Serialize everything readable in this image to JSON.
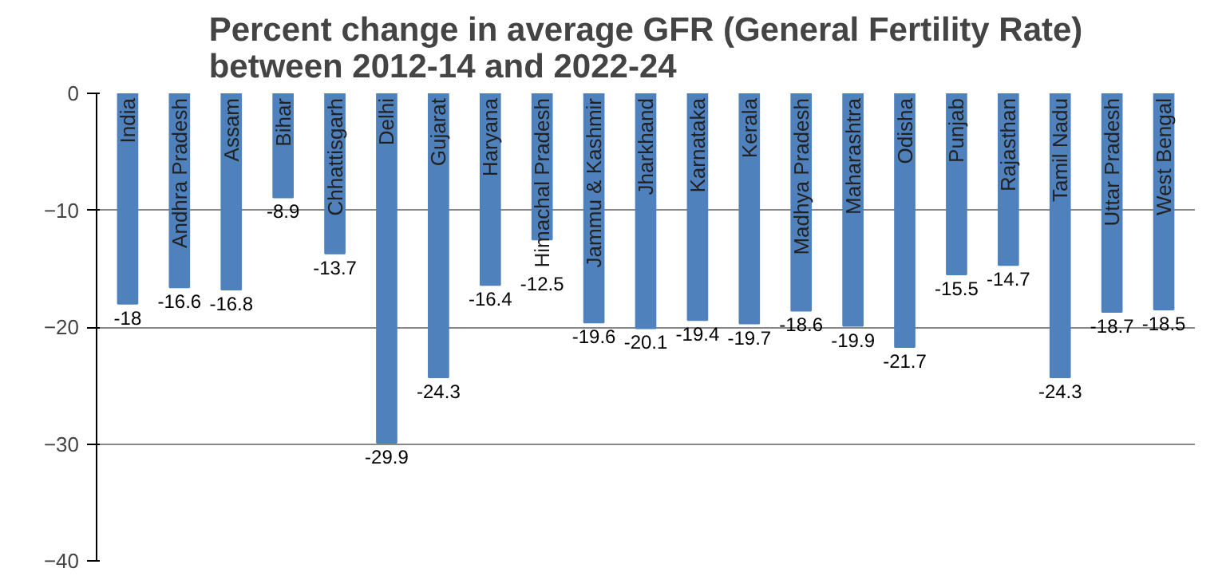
{
  "chart_data": {
    "type": "bar",
    "title": "Percent change in average GFR (General Fertility Rate)\nbetween 2012-14 and 2022-24",
    "categories": [
      "India",
      "Andhra Pradesh",
      "Assam",
      "Bihar",
      "Chhattisgarh",
      "Delhi",
      "Gujarat",
      "Haryana",
      "Himachal Pradesh",
      "Jammu & Kashmir",
      "Jharkhand",
      "Karnataka",
      "Kerala",
      "Madhya Pradesh",
      "Maharashtra",
      "Odisha",
      "Punjab",
      "Rajasthan",
      "Tamil Nadu",
      "Uttar Pradesh",
      "West Bengal"
    ],
    "values": [
      -18,
      -16.6,
      -16.8,
      -8.9,
      -13.7,
      -29.9,
      -24.3,
      -16.4,
      -12.5,
      -19.6,
      -20.1,
      -19.4,
      -19.7,
      -18.6,
      -19.9,
      -21.7,
      -15.5,
      -14.7,
      -24.3,
      -18.7,
      -18.5
    ],
    "color": "#4f81bd",
    "ylim": [
      -40,
      0
    ],
    "yticks": [
      -40,
      -30,
      -20,
      -10,
      0
    ],
    "grid": "y",
    "data_labels": true
  }
}
